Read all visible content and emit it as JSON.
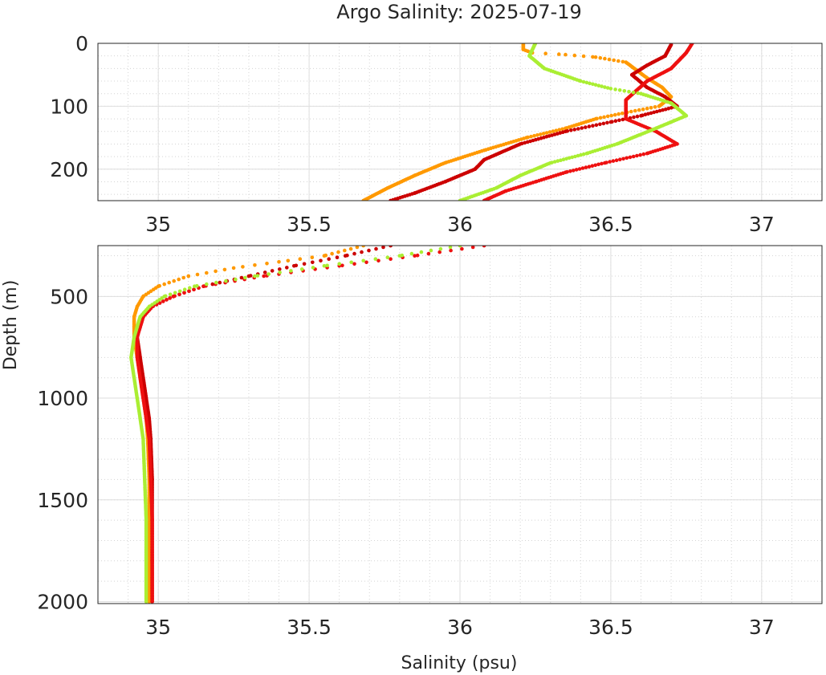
{
  "chart_data": {
    "type": "scatter",
    "title": "Argo Salinity: 2025-07-19",
    "xlabel": "Salinity (psu)",
    "ylabel": "Depth (m)",
    "xlim": [
      34.8,
      37.2
    ],
    "x_ticks": [
      35,
      35.5,
      36,
      36.5,
      37
    ],
    "x_tick_labels": [
      "35",
      "35.5",
      "36",
      "36.5",
      "37"
    ],
    "grid": true,
    "panels": [
      {
        "name": "upper",
        "ylim": [
          0,
          250
        ],
        "y_reversed": true,
        "y_ticks": [
          0,
          100,
          200
        ],
        "y_tick_labels": [
          "0",
          "100",
          "200"
        ]
      },
      {
        "name": "lower",
        "ylim": [
          250,
          2010
        ],
        "y_reversed": true,
        "y_ticks": [
          500,
          1000,
          1500,
          2000
        ],
        "y_tick_labels": [
          "500",
          "1000",
          "1500",
          "2000"
        ]
      }
    ],
    "series": [
      {
        "name": "profile-orange",
        "color": "#ff9900",
        "points": [
          [
            36.21,
            0
          ],
          [
            36.21,
            10
          ],
          [
            36.24,
            15
          ],
          [
            36.35,
            18
          ],
          [
            36.45,
            22
          ],
          [
            36.55,
            30
          ],
          [
            36.62,
            55
          ],
          [
            36.67,
            70
          ],
          [
            36.7,
            85
          ],
          [
            36.66,
            100
          ],
          [
            36.55,
            110
          ],
          [
            36.45,
            120
          ],
          [
            36.35,
            135
          ],
          [
            36.22,
            150
          ],
          [
            36.08,
            170
          ],
          [
            35.95,
            190
          ],
          [
            35.85,
            210
          ],
          [
            35.76,
            230
          ],
          [
            35.68,
            250
          ],
          [
            35.55,
            300
          ],
          [
            35.4,
            330
          ],
          [
            35.25,
            360
          ],
          [
            35.1,
            400
          ],
          [
            35.0,
            450
          ],
          [
            34.95,
            500
          ],
          [
            34.93,
            550
          ],
          [
            34.92,
            600
          ],
          [
            34.92,
            650
          ],
          [
            34.92,
            700
          ],
          [
            34.93,
            800
          ],
          [
            34.94,
            900
          ],
          [
            34.95,
            1000
          ],
          [
            34.96,
            1100
          ],
          [
            34.965,
            1200
          ],
          [
            34.97,
            1400
          ],
          [
            34.97,
            1600
          ],
          [
            34.97,
            1800
          ],
          [
            34.97,
            2000
          ]
        ]
      },
      {
        "name": "profile-darkred",
        "color": "#cc0000",
        "points": [
          [
            36.7,
            2
          ],
          [
            36.68,
            20
          ],
          [
            36.62,
            35
          ],
          [
            36.57,
            50
          ],
          [
            36.62,
            70
          ],
          [
            36.68,
            85
          ],
          [
            36.72,
            100
          ],
          [
            36.6,
            115
          ],
          [
            36.5,
            125
          ],
          [
            36.35,
            140
          ],
          [
            36.2,
            160
          ],
          [
            36.08,
            185
          ],
          [
            36.05,
            200
          ],
          [
            35.95,
            220
          ],
          [
            35.85,
            238
          ],
          [
            35.77,
            250
          ],
          [
            35.62,
            300
          ],
          [
            35.45,
            350
          ],
          [
            35.3,
            400
          ],
          [
            35.15,
            450
          ],
          [
            35.05,
            500
          ],
          [
            34.98,
            550
          ],
          [
            34.95,
            600
          ],
          [
            34.94,
            650
          ],
          [
            34.93,
            700
          ],
          [
            34.94,
            800
          ],
          [
            34.95,
            900
          ],
          [
            34.96,
            1000
          ],
          [
            34.97,
            1100
          ],
          [
            34.975,
            1200
          ],
          [
            34.98,
            1400
          ],
          [
            34.98,
            1600
          ],
          [
            34.98,
            1800
          ],
          [
            34.98,
            2000
          ]
        ]
      },
      {
        "name": "profile-red",
        "color": "#ee1111",
        "points": [
          [
            36.77,
            0
          ],
          [
            36.75,
            15
          ],
          [
            36.73,
            25
          ],
          [
            36.7,
            40
          ],
          [
            36.62,
            60
          ],
          [
            36.55,
            90
          ],
          [
            36.55,
            120
          ],
          [
            36.65,
            140
          ],
          [
            36.72,
            160
          ],
          [
            36.62,
            175
          ],
          [
            36.48,
            190
          ],
          [
            36.35,
            205
          ],
          [
            36.25,
            220
          ],
          [
            36.15,
            235
          ],
          [
            36.08,
            250
          ],
          [
            35.85,
            300
          ],
          [
            35.6,
            350
          ],
          [
            35.35,
            400
          ],
          [
            35.15,
            450
          ],
          [
            35.05,
            500
          ],
          [
            34.98,
            550
          ],
          [
            34.95,
            600
          ],
          [
            34.94,
            650
          ],
          [
            34.93,
            700
          ],
          [
            34.93,
            800
          ],
          [
            34.94,
            900
          ],
          [
            34.95,
            1000
          ],
          [
            34.96,
            1100
          ],
          [
            34.97,
            1200
          ],
          [
            34.975,
            1400
          ],
          [
            34.98,
            1600
          ],
          [
            34.98,
            1800
          ],
          [
            34.98,
            2000
          ]
        ]
      },
      {
        "name": "profile-lime",
        "color": "#aaee33",
        "points": [
          [
            36.25,
            0
          ],
          [
            36.23,
            20
          ],
          [
            36.28,
            40
          ],
          [
            36.4,
            60
          ],
          [
            36.5,
            72
          ],
          [
            36.6,
            80
          ],
          [
            36.7,
            95
          ],
          [
            36.75,
            115
          ],
          [
            36.65,
            135
          ],
          [
            36.52,
            160
          ],
          [
            36.42,
            175
          ],
          [
            36.3,
            190
          ],
          [
            36.2,
            210
          ],
          [
            36.12,
            230
          ],
          [
            36.0,
            250
          ],
          [
            35.8,
            300
          ],
          [
            35.55,
            350
          ],
          [
            35.32,
            400
          ],
          [
            35.12,
            450
          ],
          [
            35.02,
            500
          ],
          [
            34.97,
            550
          ],
          [
            34.94,
            600
          ],
          [
            34.93,
            650
          ],
          [
            34.92,
            700
          ],
          [
            34.91,
            800
          ],
          [
            34.92,
            900
          ],
          [
            34.93,
            1000
          ],
          [
            34.94,
            1100
          ],
          [
            34.95,
            1200
          ],
          [
            34.955,
            1400
          ],
          [
            34.96,
            1600
          ],
          [
            34.96,
            1800
          ],
          [
            34.96,
            2000
          ]
        ]
      }
    ]
  }
}
